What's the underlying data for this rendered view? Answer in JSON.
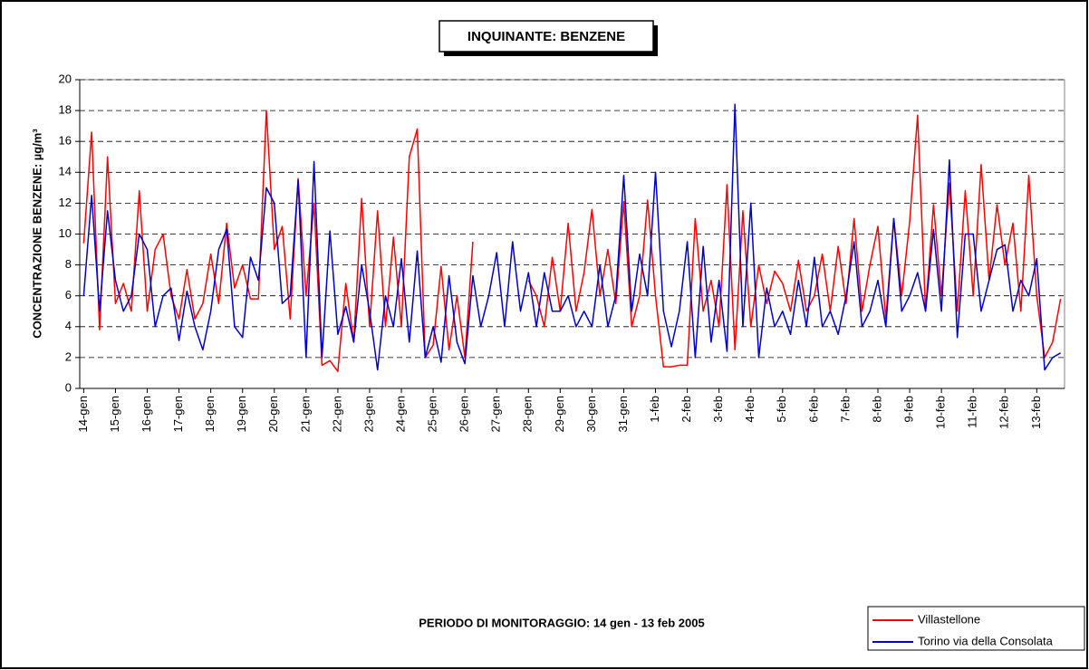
{
  "chart_data": {
    "type": "line",
    "title": "INQUINANTE: BENZENE",
    "ylabel": "CONCENTRAZIONE BENZENE:  µg/m³",
    "xlabel": "PERIODO DI MONITORAGGIO: 14 gen - 13 feb 2005",
    "categories": [
      "14-gen",
      null,
      null,
      null,
      "15-gen",
      null,
      null,
      null,
      "16-gen",
      null,
      null,
      null,
      "17-gen",
      null,
      null,
      null,
      "18-gen",
      null,
      null,
      null,
      "19-gen",
      null,
      null,
      null,
      "20-gen",
      null,
      null,
      null,
      "21-gen",
      null,
      null,
      null,
      "22-gen",
      null,
      null,
      null,
      "23-gen",
      null,
      null,
      null,
      "24-gen",
      null,
      null,
      null,
      "25-gen",
      null,
      null,
      null,
      "26-gen",
      null,
      null,
      null,
      "27-gen",
      null,
      null,
      null,
      "28-gen",
      null,
      null,
      null,
      "29-gen",
      null,
      null,
      null,
      "30-gen",
      null,
      null,
      null,
      "31-gen",
      null,
      null,
      null,
      "1-feb",
      null,
      null,
      null,
      "2-feb",
      null,
      null,
      null,
      "3-feb",
      null,
      null,
      null,
      "4-feb",
      null,
      null,
      null,
      "5-feb",
      null,
      null,
      null,
      "6-feb",
      null,
      null,
      null,
      "7-feb",
      null,
      null,
      null,
      "8-feb",
      null,
      null,
      null,
      "9-feb",
      null,
      null,
      null,
      "10-feb",
      null,
      null,
      null,
      "11-feb",
      null,
      null,
      null,
      "12-feb",
      null,
      null,
      null,
      "13-feb",
      null,
      null,
      null
    ],
    "series": [
      {
        "name": "Villastellone",
        "color": "#ff0000",
        "values": [
          9.4,
          16.6,
          3.8,
          15,
          5.5,
          6.8,
          5,
          12.8,
          5,
          9,
          10,
          6,
          4.5,
          7.7,
          4.5,
          5.5,
          8.7,
          5.5,
          10.7,
          6.5,
          8,
          5.8,
          5.8,
          18,
          9,
          10.5,
          4.5,
          13.6,
          6,
          12,
          1.5,
          1.8,
          1.1,
          6.8,
          3,
          12.3,
          4,
          11.5,
          4,
          9.8,
          4,
          15,
          16.8,
          2,
          2.8,
          7.9,
          2.5,
          6,
          2,
          9.5,
          null,
          null,
          null,
          null,
          null,
          null,
          7,
          6,
          4,
          8.5,
          5,
          10.7,
          5,
          7.5,
          11.6,
          6,
          9,
          5.5,
          12.1,
          4,
          6,
          12.2,
          6,
          1.4,
          1.4,
          1.5,
          1.5,
          11,
          5,
          7,
          4,
          13.2,
          2.5,
          11.5,
          4,
          8,
          5.5,
          7.6,
          6.8,
          5,
          8.3,
          5,
          6,
          8.7,
          5,
          9.2,
          5.5,
          11,
          5,
          8,
          10.5,
          4.5,
          11,
          6,
          10.8,
          17.7,
          5,
          11.9,
          6,
          13.3,
          5,
          12.8,
          6,
          14.5,
          7,
          11.9,
          8,
          10.7,
          5,
          13.8,
          6,
          2,
          3,
          5.8
        ]
      },
      {
        "name": "Torino via della Consolata",
        "color": "#0000cc",
        "values": [
          6,
          12.5,
          5,
          11.5,
          7,
          5,
          6,
          10,
          9,
          4,
          6,
          6.5,
          3.1,
          6.3,
          4,
          2.5,
          5,
          9,
          10.3,
          4,
          3.3,
          8.5,
          7,
          13,
          12,
          5.5,
          6,
          13.5,
          2,
          14.7,
          2,
          10.2,
          3.5,
          5.3,
          3,
          8,
          5,
          1.2,
          6,
          4,
          8.4,
          3,
          8.9,
          2,
          4,
          1.7,
          7.3,
          3,
          1.6,
          7.3,
          4,
          6,
          8.8,
          4,
          9.5,
          5,
          7.5,
          4,
          7.5,
          5,
          5,
          6,
          4,
          5,
          4,
          8,
          4,
          6,
          13.8,
          5,
          8.7,
          6,
          14,
          5,
          2.7,
          5,
          9.5,
          2,
          9.2,
          3,
          7,
          2.4,
          18.4,
          4,
          12,
          2,
          6.5,
          4,
          5,
          3.5,
          7,
          4,
          8.5,
          4,
          5,
          3.5,
          6,
          9.5,
          4,
          5,
          7,
          4,
          11,
          5,
          6,
          7.5,
          5,
          10.3,
          5,
          14.8,
          3.3,
          10,
          10,
          5,
          7,
          9,
          9.3,
          5,
          7,
          6,
          8.4,
          1.2,
          2,
          2.3
        ]
      }
    ],
    "ylim": [
      0,
      20
    ],
    "yticks": [
      0,
      2,
      4,
      6,
      8,
      10,
      12,
      14,
      16,
      18,
      20
    ],
    "grid": true
  }
}
